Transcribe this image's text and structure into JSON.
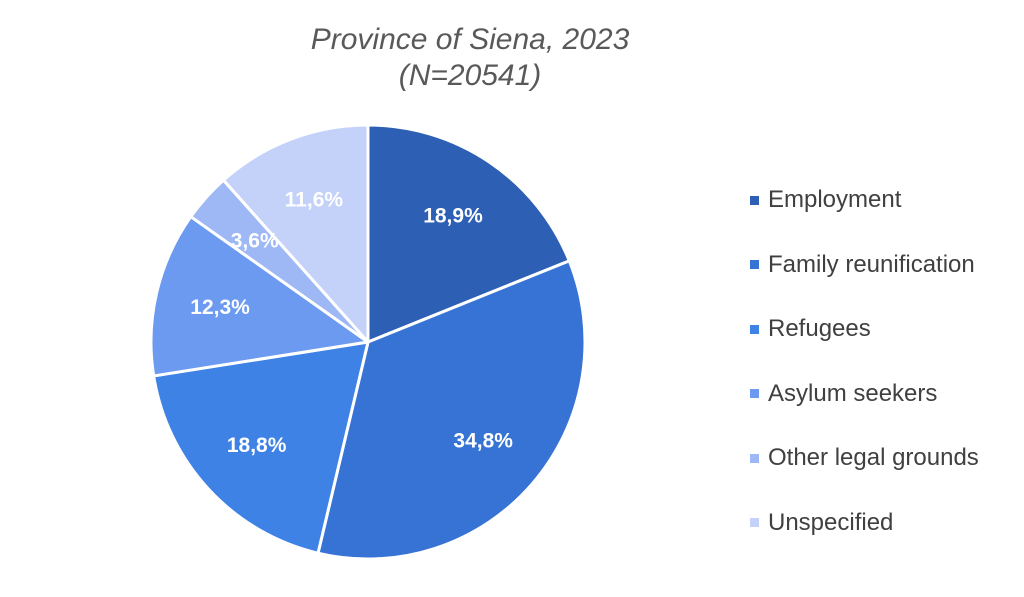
{
  "chart_data": {
    "type": "pie",
    "title": "Province of Siena, 2023",
    "subtitle": "(N=20541)",
    "categories": [
      "Employment",
      "Family reunification",
      "Refugees",
      "Asylum seekers",
      "Other legal grounds",
      "Unspecified"
    ],
    "values": [
      18.9,
      34.8,
      18.8,
      12.3,
      3.6,
      11.6
    ],
    "value_labels": [
      "18,9%",
      "34,8%",
      "18,8%",
      "12,3%",
      "3,6%",
      "11,6%"
    ],
    "colors": [
      "#2d5fb5",
      "#3673d4",
      "#3e82e6",
      "#6b9af0",
      "#9db8f5",
      "#c4d2fa"
    ],
    "legend_position": "right",
    "start_angle": "top, clockwise"
  }
}
